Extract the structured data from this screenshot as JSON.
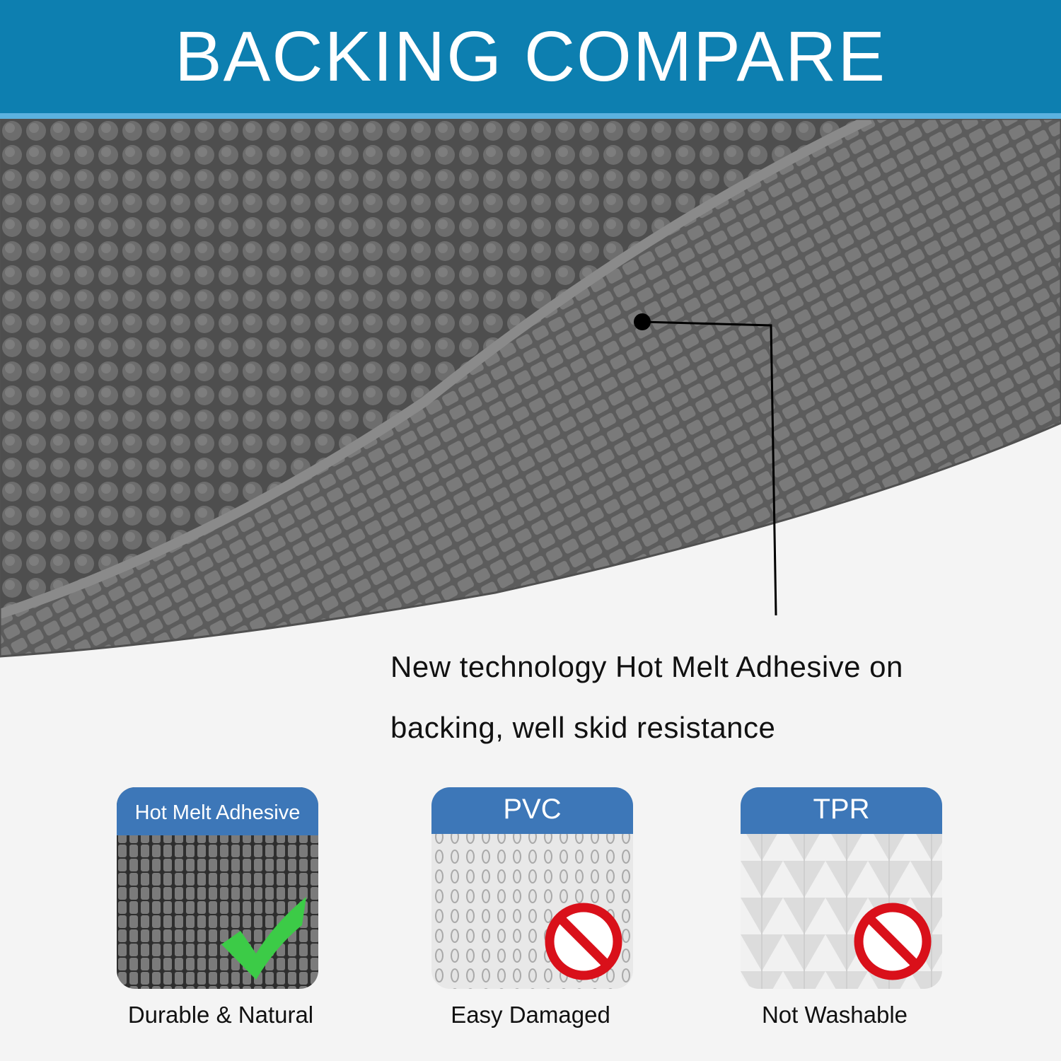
{
  "header": {
    "title": "BACKING COMPARE"
  },
  "callout": {
    "text_line1": "New technology Hot Melt Adhesive on",
    "text_line2": "backing, well skid resistance"
  },
  "cards": [
    {
      "label": "Hot Melt Adhesive",
      "caption": "Durable & Natural",
      "mark": "check-icon"
    },
    {
      "label": "PVC",
      "caption": "Easy Damaged",
      "mark": "prohibited-icon"
    },
    {
      "label": "TPR",
      "caption": "Not Washable",
      "mark": "prohibited-icon"
    }
  ],
  "colors": {
    "header_blue": "#0d7fb0",
    "band_blue": "#3d77b8",
    "check_green": "#3ccb47",
    "prohibit_red": "#d9101a"
  }
}
